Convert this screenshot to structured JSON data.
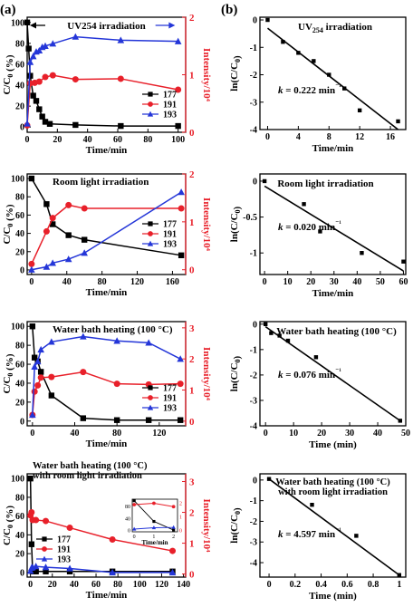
{
  "panel_labels": {
    "a": "(a)",
    "b": "(b)"
  },
  "colors": {
    "s177": "#000000",
    "s191": "#e8202a",
    "s193": "#2436d8",
    "axis": "#000000",
    "right_axis": "#e8202a"
  },
  "chart_data": [
    {
      "type": "line",
      "panel": "a",
      "title": "UV254 irradiation",
      "xlabel": "Time/min",
      "ylabel": "C/C0 (%)",
      "y2label": "Intensity/10⁴",
      "xlim": [
        0,
        105
      ],
      "ylim": [
        -5,
        105
      ],
      "y2lim": [
        0,
        2
      ],
      "xticks": [
        0,
        20,
        40,
        60,
        80,
        100
      ],
      "yticks": [
        0,
        20,
        40,
        60,
        80,
        100
      ],
      "y2ticks": [
        0,
        1,
        2
      ],
      "legend_position": "bottom-right",
      "series": [
        {
          "name": "177",
          "axis": "left",
          "marker": "square",
          "x": [
            0,
            1,
            2,
            4,
            6,
            8,
            10,
            12,
            15,
            32,
            62,
            100
          ],
          "y": [
            100,
            75,
            49,
            30,
            25,
            17,
            10,
            5,
            3,
            2,
            1,
            1
          ]
        },
        {
          "name": "191",
          "axis": "right",
          "x": [
            0,
            2,
            5,
            8,
            12,
            17,
            32,
            62,
            100
          ],
          "y": [
            0.12,
            0.85,
            0.86,
            0.88,
            0.96,
            0.99,
            0.92,
            0.93,
            0.74
          ]
        },
        {
          "name": "193",
          "axis": "right",
          "x": [
            0,
            2,
            4,
            6,
            8,
            10,
            12,
            17,
            32,
            62,
            100
          ],
          "y": [
            0.15,
            1.22,
            1.32,
            1.4,
            1.42,
            1.48,
            1.5,
            1.54,
            1.66,
            1.6,
            1.58
          ]
        }
      ]
    },
    {
      "type": "line",
      "panel": "a",
      "title": "Room light irradiation",
      "xlabel": "Time/min",
      "ylabel": "C/C0 (%)",
      "y2label": "Intensity/10⁴",
      "xlim": [
        -5,
        175
      ],
      "ylim": [
        -5,
        105
      ],
      "y2lim": [
        -0.1,
        2
      ],
      "xticks": [
        0,
        40,
        80,
        120,
        160
      ],
      "yticks": [
        0,
        20,
        40,
        60,
        80,
        100
      ],
      "y2ticks": [
        0,
        1,
        2
      ],
      "legend_position": "right",
      "series": [
        {
          "name": "177",
          "axis": "left",
          "marker": "square",
          "x": [
            0,
            17,
            24,
            42,
            60,
            170
          ],
          "y": [
            100,
            72,
            50,
            38,
            33,
            16
          ]
        },
        {
          "name": "191",
          "axis": "right",
          "x": [
            0,
            17,
            24,
            42,
            60,
            170
          ],
          "y": [
            0.12,
            0.8,
            1.08,
            1.35,
            1.28,
            1.28
          ]
        },
        {
          "name": "193",
          "axis": "right",
          "x": [
            0,
            17,
            24,
            42,
            60,
            170
          ],
          "y": [
            0.0,
            0.06,
            0.14,
            0.22,
            0.35,
            1.62
          ]
        }
      ]
    },
    {
      "type": "line",
      "panel": "a",
      "title": "Water bath heating (100 °C)",
      "xlabel": "Time/min",
      "ylabel": "C/C0 (%)",
      "y2label": "Intensity/10⁴",
      "xlim": [
        -5,
        145
      ],
      "ylim": [
        -5,
        105
      ],
      "y2lim": [
        -0.15,
        3.2
      ],
      "xticks": [
        0,
        40,
        80,
        120
      ],
      "yticks": [
        0,
        20,
        40,
        60,
        80,
        100
      ],
      "y2ticks": [
        0,
        1,
        2,
        3
      ],
      "legend_position": "bottom-right",
      "series": [
        {
          "name": "177",
          "axis": "left",
          "marker": "square",
          "x": [
            0,
            2,
            5,
            8,
            18,
            48,
            80,
            110,
            140
          ],
          "y": [
            100,
            67,
            63,
            52,
            27,
            3,
            1,
            1,
            1
          ]
        },
        {
          "name": "191",
          "axis": "right",
          "x": [
            0,
            2,
            5,
            8,
            18,
            48,
            80,
            110,
            140
          ],
          "y": [
            0.2,
            0.95,
            1.15,
            1.4,
            1.42,
            1.58,
            1.2,
            1.18,
            1.2
          ]
        },
        {
          "name": "193",
          "axis": "right",
          "x": [
            0,
            2,
            5,
            8,
            18,
            48,
            80,
            110,
            140
          ],
          "y": [
            0.2,
            1.75,
            1.92,
            2.3,
            2.55,
            2.72,
            2.58,
            2.52,
            2.0
          ]
        }
      ]
    },
    {
      "type": "line",
      "panel": "a",
      "title": "Water bath heating (100 °C) with room light irradiation",
      "xlabel": "Time/min",
      "ylabel": "C/C0 (%)",
      "y2label": "Intensity/10⁴",
      "xlim": [
        -3,
        142
      ],
      "ylim": [
        -5,
        105
      ],
      "y2lim": [
        -0.1,
        3.25
      ],
      "xticks": [
        0,
        20,
        40,
        60,
        80,
        100,
        120,
        140
      ],
      "yticks": [
        0,
        20,
        40,
        60,
        80,
        100
      ],
      "y2ticks": [
        0,
        1,
        2,
        3
      ],
      "legend_position": "bottom-left",
      "inset": {
        "xlabel": "Time/min",
        "xticks": [
          0,
          1,
          2
        ],
        "yticks": [
          0,
          40,
          80
        ],
        "y2ticks": [
          0,
          1,
          2
        ],
        "yticks_right": [
          0,
          1,
          2
        ]
      },
      "series": [
        {
          "name": "177",
          "axis": "left",
          "marker": "square",
          "x": [
            0,
            1,
            2,
            5,
            14,
            36,
            75,
            130
          ],
          "y": [
            100,
            30,
            1,
            1,
            1,
            1,
            1,
            1
          ]
        },
        {
          "name": "191",
          "axis": "right",
          "x": [
            0,
            1,
            2,
            5,
            14,
            36,
            75,
            130
          ],
          "y": [
            1.9,
            2.0,
            1.75,
            1.75,
            1.72,
            1.5,
            1.12,
            0.75
          ]
        },
        {
          "name": "193",
          "axis": "right",
          "x": [
            0,
            1,
            2,
            5,
            14,
            36,
            75,
            130
          ],
          "y": [
            0.1,
            0.2,
            0.22,
            0.25,
            0.22,
            0.18,
            0.05,
            0.05
          ]
        }
      ]
    },
    {
      "type": "scatter",
      "panel": "b",
      "title": "UV254 irradiation",
      "xlabel": "Time/min",
      "ylabel": "ln(C/C0)",
      "xlim": [
        -1,
        18
      ],
      "ylim": [
        -4,
        0.1
      ],
      "xticks": [
        0,
        4,
        8,
        12,
        16
      ],
      "yticks": [
        0,
        -1,
        -2,
        -3,
        -4
      ],
      "annotation": "k = 0.222 min⁻¹",
      "points": {
        "x": [
          0,
          2,
          4,
          6,
          8,
          10,
          12,
          17
        ],
        "y": [
          0,
          -0.8,
          -1.2,
          -1.5,
          -2.0,
          -2.5,
          -3.3,
          -3.7
        ]
      },
      "fit": {
        "x": [
          0,
          17
        ],
        "y": [
          -0.3,
          -4.0
        ]
      }
    },
    {
      "type": "scatter",
      "panel": "b",
      "title": "Room light irradiation",
      "xlabel": "Time/min",
      "ylabel": "ln(C/C0)",
      "xlim": [
        -2,
        61
      ],
      "ylim": [
        -1.3,
        0.1
      ],
      "xticks": [
        0,
        10,
        20,
        30,
        40,
        50,
        60
      ],
      "yticks": [
        0.0,
        -0.5,
        -1.0
      ],
      "annotation": "k = 0.020 min⁻¹",
      "points": {
        "x": [
          0,
          17,
          24,
          42,
          60
        ],
        "y": [
          0,
          -0.32,
          -0.7,
          -1.0,
          -1.12
        ]
      },
      "fit": {
        "x": [
          0,
          60
        ],
        "y": [
          -0.07,
          -1.25
        ]
      }
    },
    {
      "type": "scatter",
      "panel": "b",
      "title": "Water bath heating (100 °C)",
      "xlabel": "Time (min)",
      "ylabel": "ln(C/C0)",
      "xlim": [
        -2,
        50
      ],
      "ylim": [
        -4,
        0.1
      ],
      "xticks": [
        0,
        10,
        20,
        30,
        40,
        50
      ],
      "yticks": [
        0,
        -1,
        -2,
        -3,
        -4
      ],
      "annotation": "k = 0.076 min⁻¹",
      "points": {
        "x": [
          0,
          2,
          5,
          8,
          18,
          48
        ],
        "y": [
          0,
          -0.35,
          -0.45,
          -0.65,
          -1.3,
          -3.8
        ]
      },
      "fit": {
        "x": [
          0,
          48
        ],
        "y": [
          -0.1,
          -3.8
        ]
      }
    },
    {
      "type": "scatter",
      "panel": "b",
      "title": "Water bath heating (100 °C) with room light irradiation",
      "xlabel": "Time (min)",
      "ylabel": "ln(C/C0)",
      "xlim": [
        -0.07,
        1.05
      ],
      "ylim": [
        -4.7,
        0.3
      ],
      "xticks": [
        0.0,
        0.2,
        0.4,
        0.6,
        0.8,
        1.0
      ],
      "yticks": [
        0,
        -1,
        -2,
        -3,
        -4
      ],
      "annotation": "k = 4.597 min⁻¹",
      "points": {
        "x": [
          0,
          0.33,
          0.67,
          1.0
        ],
        "y": [
          0.05,
          -1.2,
          -2.7,
          -4.6
        ]
      },
      "fit": {
        "x": [
          0,
          1.0
        ],
        "y": [
          0.05,
          -4.6
        ]
      }
    }
  ]
}
